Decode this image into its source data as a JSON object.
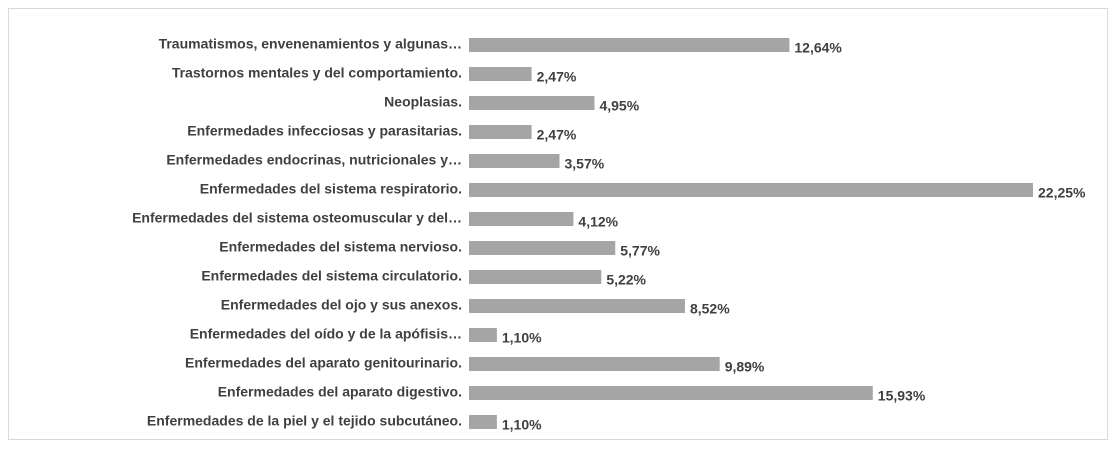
{
  "chart_data": {
    "type": "bar",
    "orientation": "horizontal",
    "color": "#a5a5a5",
    "categories": [
      "Traumatismos, envenenamientos y algunas…",
      "Trastornos mentales y del comportamiento.",
      "Neoplasias.",
      "Enfermedades infecciosas y parasitarias.",
      "Enfermedades endocrinas, nutricionales y…",
      "Enfermedades del sistema respiratorio.",
      "Enfermedades del sistema osteomuscular y del…",
      "Enfermedades del sistema nervioso.",
      "Enfermedades del sistema circulatorio.",
      "Enfermedades del ojo y sus anexos.",
      "Enfermedades del oído y de la apófisis…",
      "Enfermedades del aparato genitourinario.",
      "Enfermedades del aparato digestivo.",
      "Enfermedades de la piel y el tejido subcutáneo."
    ],
    "values": [
      12.64,
      2.47,
      4.95,
      2.47,
      3.57,
      22.25,
      4.12,
      5.77,
      5.22,
      8.52,
      1.1,
      9.89,
      15.93,
      1.1
    ],
    "value_labels": [
      "12,64%",
      "2,47%",
      "4,95%",
      "2,47%",
      "3,57%",
      "22,25%",
      "4,12%",
      "5,77%",
      "5,22%",
      "8,52%",
      "1,10%",
      "9,89%",
      "15,93%",
      "1,10%"
    ]
  }
}
